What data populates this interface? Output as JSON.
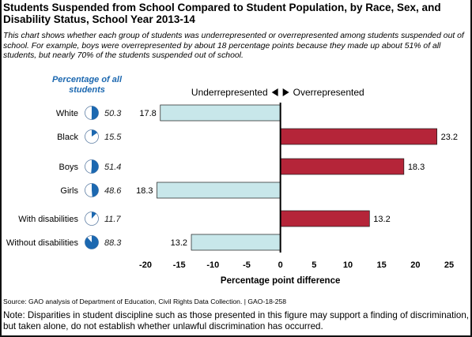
{
  "title": "Students Suspended from School Compared to Student Population, by Race, Sex, and Disability Status, School Year 2013-14",
  "subtitle": "This chart shows whether each group of students was underrepresented or overrepresented among students suspended out of school. For example, boys were overrepresented by about 18 percentage points because they made up about 51% of all students, but nearly 70% of the students suspended out of school.",
  "share_header": "Percentage of all students",
  "legend": {
    "under": "Underrepresented",
    "over": "Overrepresented"
  },
  "source": "Source: GAO analysis of Department of Education, Civil Rights Data Collection. | GAO-18-258",
  "note": "Note: Disparities in student discipline such as those presented in this figure may support a finding of discrimination, but taken alone, do not establish whether unlawful discrimination has occurred.",
  "colors": {
    "under": "#c8e7ea",
    "over": "#b52539",
    "pie": "#1c68b0",
    "label": "#1c68b0"
  },
  "chart_data": {
    "type": "bar",
    "orientation": "horizontal",
    "categories": [
      "White",
      "Black",
      "Boys",
      "Girls",
      "With disabilities",
      "Without disabilities"
    ],
    "values": [
      -17.8,
      23.2,
      18.3,
      -18.3,
      13.2,
      -13.2
    ],
    "value_labels": [
      "17.8",
      "23.2",
      "18.3",
      "18.3",
      "13.2",
      "13.2"
    ],
    "share_of_students": [
      50.3,
      15.5,
      51.4,
      48.6,
      11.7,
      88.3
    ],
    "share_labels": [
      "50.3",
      "15.5",
      "51.4",
      "48.6",
      "11.7",
      "88.3"
    ],
    "xlabel": "Percentage point difference",
    "xlim": [
      -20,
      25
    ],
    "xticks": [
      -20,
      -15,
      -10,
      -5,
      0,
      5,
      10,
      15,
      20,
      25
    ],
    "xtick_labels": [
      "-20",
      "-15",
      "-10",
      "-5",
      "0",
      "5",
      "10",
      "15",
      "20",
      "25"
    ],
    "grid": false
  }
}
